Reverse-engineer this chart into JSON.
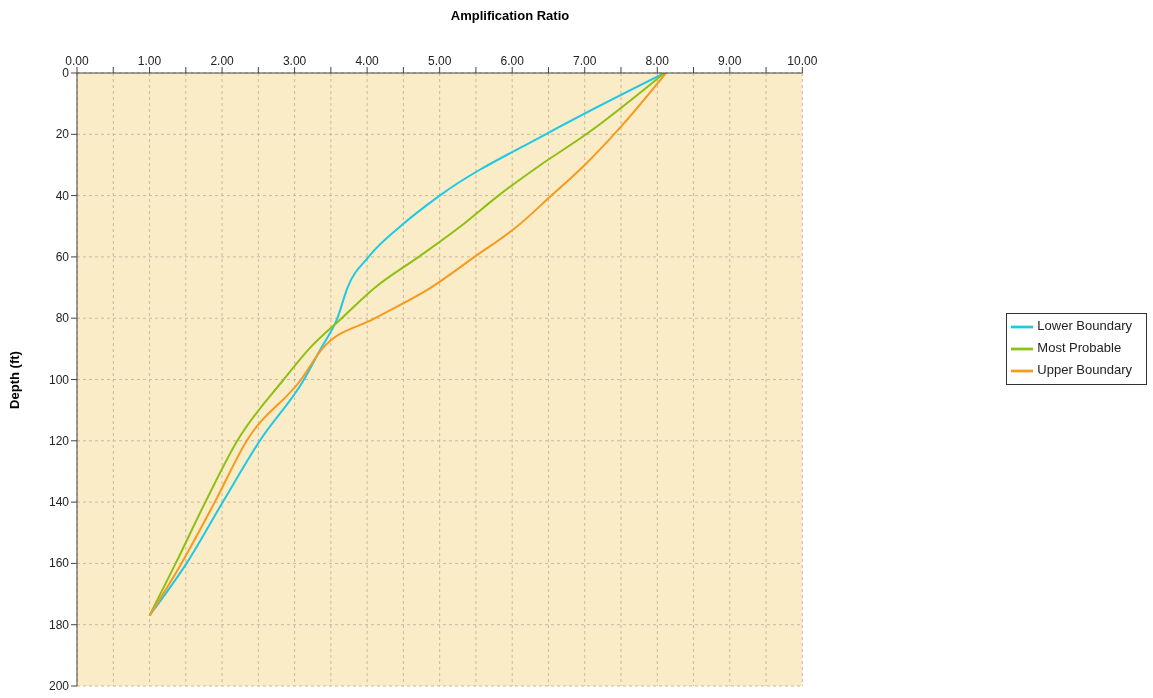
{
  "chart_data": {
    "type": "line",
    "xlabel": "Amplification Ratio",
    "ylabel": "Depth (ft)",
    "xlim": [
      0,
      10
    ],
    "ylim": [
      200,
      0
    ],
    "xticks": [
      {
        "value": 0,
        "label": "0.00"
      },
      {
        "value": 0.5,
        "label": null
      },
      {
        "value": 1,
        "label": "1.00"
      },
      {
        "value": 1.5,
        "label": null
      },
      {
        "value": 2,
        "label": "2.00"
      },
      {
        "value": 2.5,
        "label": null
      },
      {
        "value": 3,
        "label": "3.00"
      },
      {
        "value": 3.5,
        "label": null
      },
      {
        "value": 4,
        "label": "4.00"
      },
      {
        "value": 4.5,
        "label": null
      },
      {
        "value": 5,
        "label": "5.00"
      },
      {
        "value": 5.5,
        "label": null
      },
      {
        "value": 6,
        "label": "6.00"
      },
      {
        "value": 6.5,
        "label": null
      },
      {
        "value": 7,
        "label": "7.00"
      },
      {
        "value": 7.5,
        "label": null
      },
      {
        "value": 8,
        "label": "8.00"
      },
      {
        "value": 8.5,
        "label": null
      },
      {
        "value": 9,
        "label": "9.00"
      },
      {
        "value": 9.5,
        "label": null
      },
      {
        "value": 10,
        "label": "10.00"
      }
    ],
    "yticks": [
      0,
      20,
      40,
      60,
      80,
      100,
      120,
      140,
      160,
      180,
      200
    ],
    "grid": true,
    "legend": "right",
    "line_style": "solid",
    "marker": "none",
    "series": [
      {
        "name": "Lower Boundary",
        "color": "#1ec8e6",
        "x": [
          8.1,
          6.46,
          5.0,
          4.46,
          4.02,
          3.73,
          3.59,
          3.36,
          3.13,
          2.52,
          2.01,
          1.51,
          1.0
        ],
        "values": [
          0,
          20,
          40,
          50,
          60,
          70,
          80,
          90,
          100,
          120,
          140,
          160,
          177
        ]
      },
      {
        "name": "Most Probable",
        "color": "#8cc014",
        "x": [
          8.1,
          7.02,
          6.39,
          5.81,
          5.29,
          4.71,
          4.11,
          3.65,
          3.2,
          2.85,
          2.21,
          1.77,
          1.36,
          1.0
        ],
        "values": [
          0,
          20,
          30,
          40,
          50,
          60,
          70,
          80,
          90,
          100,
          120,
          140,
          160,
          177
        ]
      },
      {
        "name": "Upper Boundary",
        "color": "#f59a1e",
        "x": [
          8.12,
          7.5,
          7.0,
          6.54,
          6.07,
          5.48,
          4.88,
          4.11,
          3.38,
          3.09,
          2.34,
          1.9,
          1.44,
          1.0
        ],
        "values": [
          0,
          17.5,
          30,
          40,
          50,
          60,
          70,
          80,
          90,
          100,
          120,
          140,
          160,
          177
        ]
      }
    ]
  }
}
